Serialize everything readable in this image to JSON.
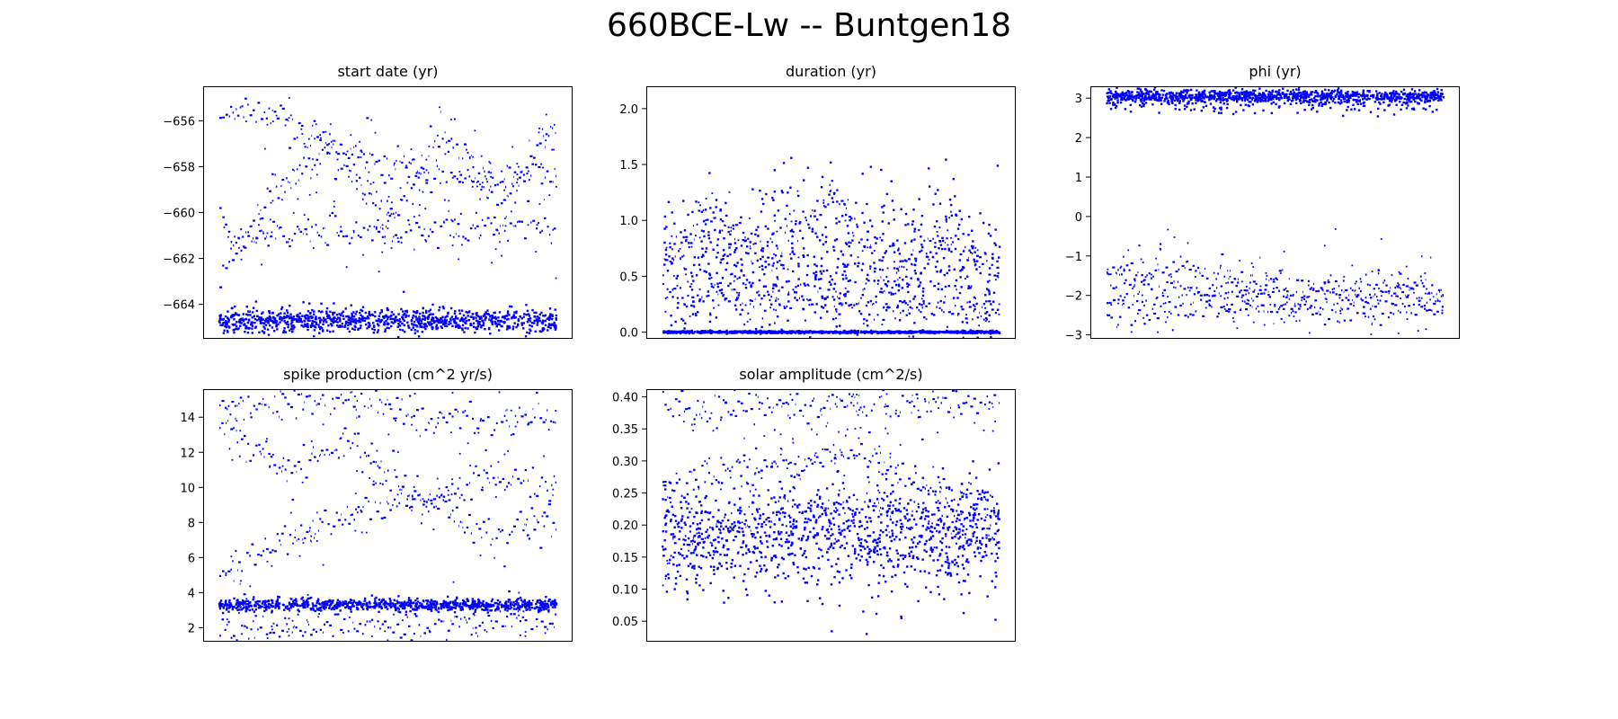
{
  "figure": {
    "title": "660BCE-Lw -- Buntgen18"
  },
  "chart_data": [
    {
      "type": "scatter",
      "title": "start date (yr)",
      "ylim": [
        -665.5,
        -654.5
      ],
      "yticks": [
        -656,
        -658,
        -660,
        -662,
        -664
      ],
      "ytick_labels": [
        "−656",
        "−658",
        "−660",
        "−662",
        "−664"
      ],
      "n_samples": 2000,
      "color": "#0000ff",
      "clusters": [
        {
          "name": "",
          "value": -664.7,
          "spread": 0.25,
          "share": 0.5
        }
      ],
      "chains": [
        {
          "levels": [
            -655.6,
            -656.0,
            -657.6,
            -658.2,
            -658.5,
            -658.4
          ]
        },
        {
          "levels": [
            -661.0,
            -660.9,
            -660.8,
            -660.8,
            -660.6,
            -660.6
          ]
        },
        {
          "levels": [
            -662.5,
            -659.0,
            -657.0,
            -660.3,
            -656.5,
            -659.8,
            -656.0
          ]
        }
      ],
      "grid": false
    },
    {
      "type": "scatter",
      "title": "duration (yr)",
      "ylim": [
        -0.06,
        2.2
      ],
      "yticks": [
        0.0,
        0.5,
        1.0,
        1.5,
        2.0
      ],
      "ytick_labels": [
        "0.0",
        "0.5",
        "1.0",
        "1.5",
        "2.0"
      ],
      "n_samples": 2000,
      "color": "#0000ff",
      "clusters": [
        {
          "name": "",
          "value": 0.0,
          "spread": 0.005,
          "share": 0.45
        },
        {
          "name": "",
          "value": 0.6,
          "spread": 0.35,
          "share": 0.35
        }
      ],
      "chains": [
        {
          "levels": [
            0.32,
            0.31,
            0.29,
            0.26,
            0.2,
            0.2
          ]
        },
        {
          "levels": [
            0.6,
            1.0,
            0.7,
            1.3,
            0.4,
            0.9,
            0.5
          ]
        }
      ],
      "grid": false
    },
    {
      "type": "scatter",
      "title": "phi (yr)",
      "ylim": [
        -3.1,
        3.3
      ],
      "yticks": [
        3,
        2,
        1,
        0,
        -1,
        -2,
        -3
      ],
      "ytick_labels": [
        "3",
        "2",
        "1",
        "0",
        "−1",
        "−2",
        "−3"
      ],
      "n_samples": 2000,
      "color": "#0000ff",
      "clusters": [
        {
          "name": "",
          "value": 3.05,
          "spread": 0.08,
          "share": 0.5
        },
        {
          "name": "",
          "value": 2.85,
          "spread": 0.15,
          "share": 0.1
        }
      ],
      "chains": [
        {
          "levels": [
            -1.8,
            -1.9,
            -2.0,
            -2.0,
            -1.9,
            -1.95
          ]
        },
        {
          "levels": [
            -2.5,
            -2.3,
            -2.2,
            -2.4,
            -2.4,
            -2.4
          ]
        },
        {
          "levels": [
            -1.5,
            -1.2,
            -1.7,
            -1.9,
            -1.8,
            -2.1
          ]
        }
      ],
      "grid": false
    },
    {
      "type": "scatter",
      "title": "spike production (cm^2 yr/s)",
      "ylim": [
        1.2,
        15.6
      ],
      "yticks": [
        14,
        12,
        10,
        8,
        6,
        4,
        2
      ],
      "ytick_labels": [
        "14",
        "12",
        "10",
        "8",
        "6",
        "4",
        "2"
      ],
      "n_samples": 2000,
      "color": "#0000ff",
      "clusters": [
        {
          "name": "",
          "value": 3.3,
          "spread": 0.18,
          "share": 0.45
        }
      ],
      "chains": [
        {
          "levels": [
            2.0,
            2.0,
            2.2,
            2.1,
            2.2,
            2.3
          ]
        },
        {
          "levels": [
            14.6,
            14.8,
            14.9,
            14.2,
            13.8,
            13.9
          ]
        },
        {
          "levels": [
            13.5,
            11.0,
            12.5,
            9.0,
            10.5,
            9.5
          ]
        },
        {
          "levels": [
            5.0,
            7.0,
            8.5,
            9.5,
            7.2,
            8.0
          ]
        }
      ],
      "grid": false
    },
    {
      "type": "scatter",
      "title": "solar amplitude (cm^2/s)",
      "ylim": [
        0.018,
        0.412
      ],
      "yticks": [
        0.4,
        0.35,
        0.3,
        0.25,
        0.2,
        0.15,
        0.1,
        0.05
      ],
      "ytick_labels": [
        "0.40",
        "0.35",
        "0.30",
        "0.25",
        "0.20",
        "0.15",
        "0.10",
        "0.05"
      ],
      "n_samples": 2000,
      "color": "#0000ff",
      "clusters": [
        {
          "name": "",
          "value": 0.18,
          "spread": 0.045,
          "share": 0.5
        }
      ],
      "chains": [
        {
          "levels": [
            0.385,
            0.38,
            0.385,
            0.39,
            0.39,
            0.39
          ]
        },
        {
          "levels": [
            0.26,
            0.28,
            0.3,
            0.31,
            0.25,
            0.24
          ]
        },
        {
          "levels": [
            0.16,
            0.2,
            0.22,
            0.23,
            0.21,
            0.18
          ]
        }
      ],
      "grid": false
    }
  ]
}
